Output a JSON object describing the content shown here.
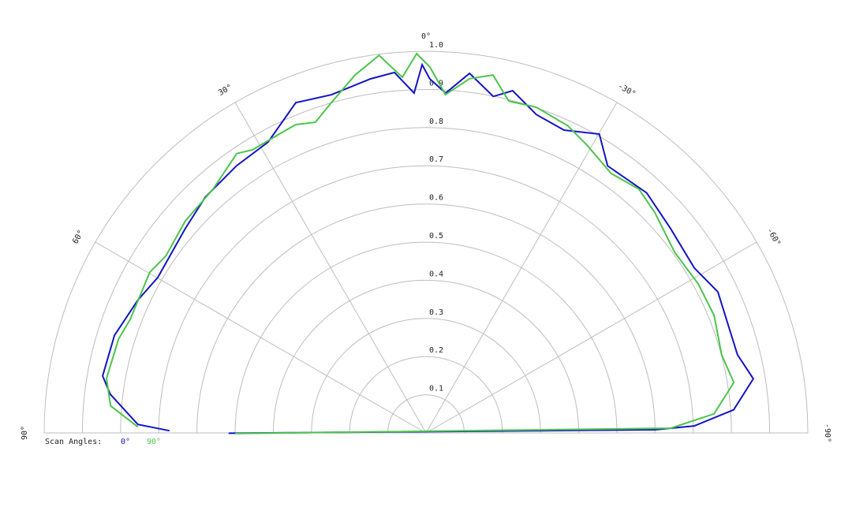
{
  "chart_data": {
    "type": "polar",
    "rlim": [
      0,
      1
    ],
    "rticks": [
      0.1,
      0.2,
      0.3,
      0.4,
      0.5,
      0.6,
      0.7,
      0.8,
      0.9,
      {
        "value": 1,
        "label": "1.0"
      }
    ],
    "thetaticks": [
      {
        "value": 90,
        "label": "90°"
      },
      {
        "value": 60,
        "label": "60°"
      },
      {
        "value": 30,
        "label": "30°"
      },
      {
        "value": 0,
        "label": "0°"
      },
      {
        "value": -30,
        "label": "-30°"
      },
      {
        "value": -60,
        "label": "-60°"
      },
      {
        "value": -90,
        "label": "-90°"
      }
    ],
    "legend_title": "Scan Angles:",
    "series": [
      {
        "name": "0°",
        "color": "#1414c4",
        "x": [
          89.5,
          88.3,
          83,
          80,
          72.6,
          65.2,
          59.9,
          49.7,
          43.1,
          35.3,
          28.5,
          21.5,
          15.6,
          8.9,
          5.0,
          2.0,
          0.6,
          -0.6,
          -3.3,
          -6.9,
          -11.3,
          -14.2,
          -19.1,
          -24.5,
          -30.1,
          -34.2,
          -42.6,
          -50.1,
          -58.4,
          -64.2,
          -75.9,
          -80.6,
          -85.7,
          -88.5,
          -89.2,
          -269.9
        ],
        "values": [
          0.672,
          0.755,
          0.833,
          0.86,
          0.855,
          0.831,
          0.812,
          0.827,
          0.846,
          0.858,
          0.867,
          0.93,
          0.92,
          0.939,
          0.948,
          0.891,
          0.965,
          0.928,
          0.892,
          0.949,
          0.899,
          0.925,
          0.883,
          0.872,
          0.905,
          0.846,
          0.854,
          0.835,
          0.825,
          0.849,
          0.841,
          0.869,
          0.808,
          0.703,
          0.599,
          0.517
        ]
      },
      {
        "name": "90°",
        "color": "#4cc44c",
        "x": [
          88.8,
          85.1,
          80.3,
          73,
          69,
          59.8,
          55.8,
          48.6,
          41.1,
          34.1,
          31.5,
          27.5,
          22.9,
          19.6,
          16,
          11.2,
          7.1,
          3.8,
          1.4,
          -0.6,
          -3.3,
          -7,
          -10.6,
          -14,
          -18.7,
          -24.8,
          -29.4,
          -35.5,
          -41.1,
          -46.1,
          -54,
          -61.3,
          -67.8,
          -75.2,
          -80.7,
          -86.2,
          -88.9,
          -269.8
        ],
        "values": [
          0.755,
          0.829,
          0.849,
          0.842,
          0.83,
          0.837,
          0.824,
          0.84,
          0.848,
          0.884,
          0.87,
          0.871,
          0.877,
          0.864,
          0.9,
          0.956,
          0.997,
          0.934,
          0.994,
          0.959,
          0.888,
          0.935,
          0.954,
          0.896,
          0.901,
          0.886,
          0.863,
          0.835,
          0.848,
          0.832,
          0.805,
          0.813,
          0.815,
          0.801,
          0.817,
          0.756,
          0.641,
          0.5
        ]
      }
    ]
  }
}
